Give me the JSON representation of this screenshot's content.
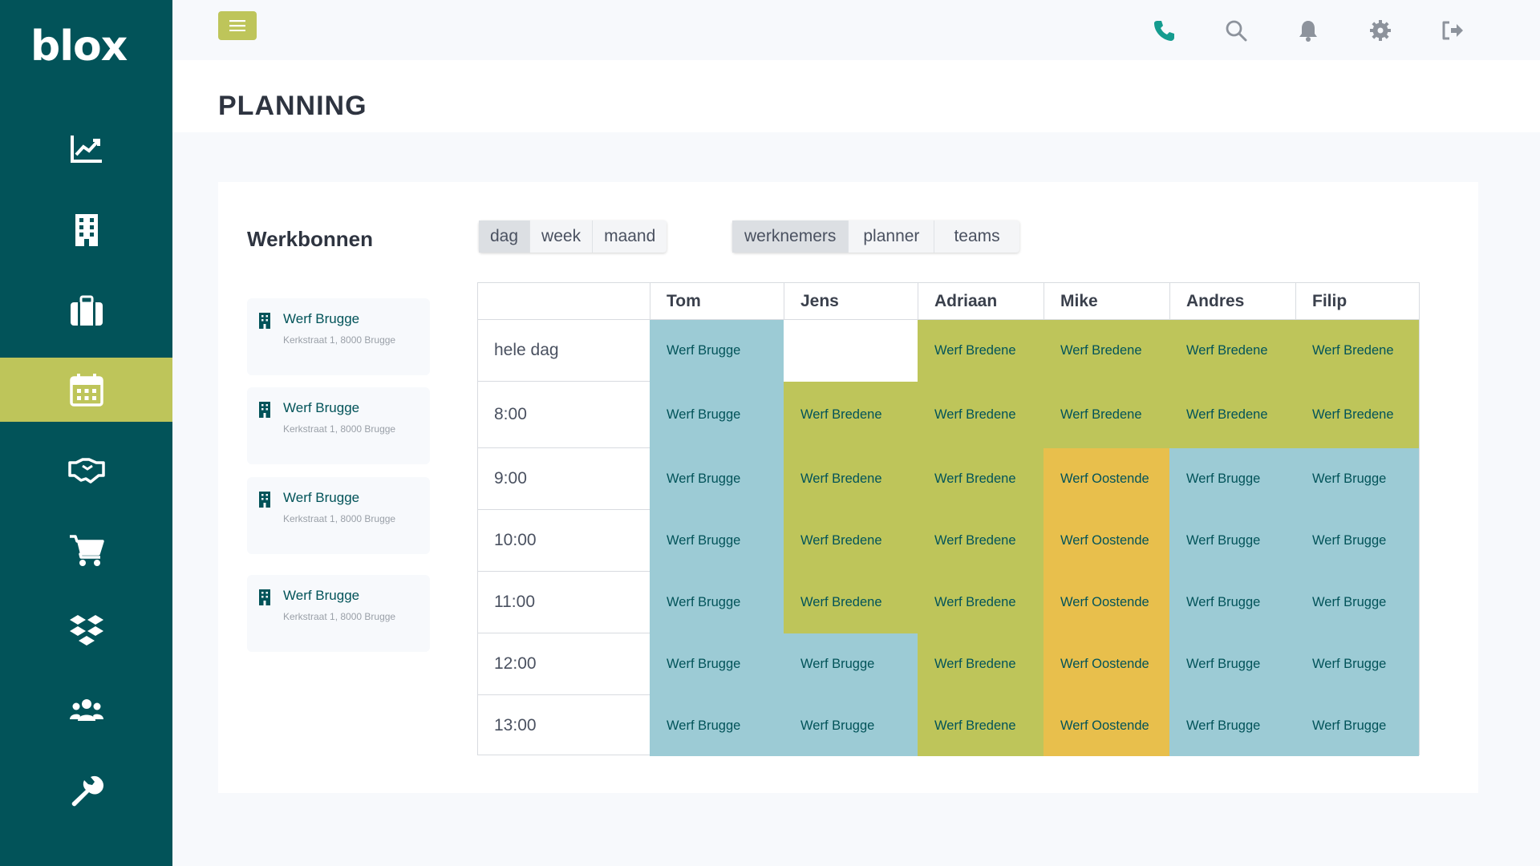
{
  "app": {
    "logo": "blox"
  },
  "page": {
    "title": "PLANNING"
  },
  "sidebar": {
    "items": [
      {
        "icon": "chart-line-icon",
        "label": "dashboard"
      },
      {
        "icon": "building-icon",
        "label": "werven"
      },
      {
        "icon": "briefcase-icon",
        "label": "projecten"
      },
      {
        "icon": "calendar-icon",
        "label": "planning",
        "active": true
      },
      {
        "icon": "handshake-icon",
        "label": "klanten"
      },
      {
        "icon": "cart-icon",
        "label": "bestellingen"
      },
      {
        "icon": "boxes-icon",
        "label": "materiaal"
      },
      {
        "icon": "users-icon",
        "label": "personeel"
      },
      {
        "icon": "wrench-icon",
        "label": "instellingen"
      }
    ]
  },
  "topbar": {
    "icons": [
      "phone-icon",
      "search-icon",
      "bell-icon",
      "gear-icon",
      "logout-icon"
    ]
  },
  "workorders": {
    "title": "Werkbonnen",
    "items": [
      {
        "name": "Werf Brugge",
        "address": "Kerkstraat 1, 8000 Brugge"
      },
      {
        "name": "Werf Brugge",
        "address": "Kerkstraat 1, 8000 Brugge"
      },
      {
        "name": "Werf Brugge",
        "address": "Kerkstraat 1, 8000 Brugge"
      },
      {
        "name": "Werf Brugge",
        "address": "Kerkstraat 1, 8000 Brugge"
      }
    ]
  },
  "view_toggle": {
    "options": [
      "dag",
      "week",
      "maand"
    ],
    "selected": "dag"
  },
  "mode_toggle": {
    "options": [
      "werknemers",
      "planner",
      "teams"
    ],
    "selected": "werknemers"
  },
  "colors": {
    "sidebar": "#025359",
    "accent": "#bec55a",
    "brugge": "#9ccbd5",
    "bredene": "#bec55a",
    "oostende": "#e8bf4c"
  },
  "schedule": {
    "employees": [
      "Tom",
      "Jens",
      "Adriaan",
      "Mike",
      "Andres",
      "Filip"
    ],
    "slots": [
      "hele dag",
      "8:00",
      "9:00",
      "10:00",
      "11:00",
      "12:00",
      "13:00"
    ],
    "cells": [
      [
        "Werf Brugge",
        "",
        "Werf Bredene",
        "Werf Bredene",
        "Werf Bredene",
        "Werf Bredene"
      ],
      [
        "Werf Brugge",
        "Werf Bredene",
        "Werf Bredene",
        "Werf Bredene",
        "Werf Bredene",
        "Werf Bredene"
      ],
      [
        "Werf Brugge",
        "Werf Bredene",
        "Werf Bredene",
        "Werf Oostende",
        "Werf Brugge",
        "Werf Brugge"
      ],
      [
        "Werf Brugge",
        "Werf Bredene",
        "Werf Bredene",
        "Werf Oostende",
        "Werf Brugge",
        "Werf Brugge"
      ],
      [
        "Werf Brugge",
        "Werf Bredene",
        "Werf Bredene",
        "Werf Oostende",
        "Werf Brugge",
        "Werf Brugge"
      ],
      [
        "Werf Brugge",
        "Werf Brugge",
        "Werf Bredene",
        "Werf Oostende",
        "Werf Brugge",
        "Werf Brugge"
      ],
      [
        "Werf Brugge",
        "Werf Brugge",
        "Werf Bredene",
        "Werf Oostende",
        "Werf Brugge",
        "Werf Brugge"
      ]
    ]
  }
}
